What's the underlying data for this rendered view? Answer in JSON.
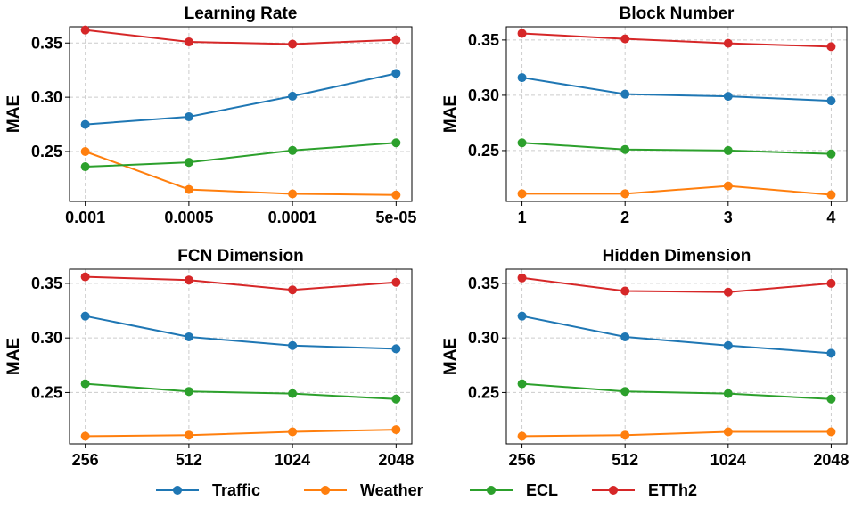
{
  "colors": {
    "Traffic": "#1f77b4",
    "Weather": "#ff7f0e",
    "ECL": "#2ca02c",
    "ETTh2": "#d62728"
  },
  "legend": [
    {
      "name": "Traffic"
    },
    {
      "name": "Weather"
    },
    {
      "name": "ECL"
    },
    {
      "name": "ETTh2"
    }
  ],
  "chart_data": [
    {
      "type": "line",
      "title": "Learning Rate",
      "ylabel": "MAE",
      "categories": [
        "0.001",
        "0.0005",
        "0.0001",
        "5e-05"
      ],
      "ylim": [
        0.204,
        0.365
      ],
      "yticks": [
        "0.25",
        "0.30",
        "0.35"
      ],
      "grid": true,
      "series": [
        {
          "name": "Traffic",
          "values": [
            0.275,
            0.282,
            0.301,
            0.322
          ]
        },
        {
          "name": "Weather",
          "values": [
            0.25,
            0.215,
            0.211,
            0.21
          ]
        },
        {
          "name": "ECL",
          "values": [
            0.236,
            0.24,
            0.251,
            0.258
          ]
        },
        {
          "name": "ETTh2",
          "values": [
            0.362,
            0.351,
            0.349,
            0.353
          ]
        }
      ]
    },
    {
      "type": "line",
      "title": "Block Number",
      "ylabel": "MAE",
      "categories": [
        "1",
        "2",
        "3",
        "4"
      ],
      "ylim": [
        0.204,
        0.362
      ],
      "yticks": [
        "0.25",
        "0.30",
        "0.35"
      ],
      "grid": true,
      "series": [
        {
          "name": "Traffic",
          "values": [
            0.316,
            0.301,
            0.299,
            0.295
          ]
        },
        {
          "name": "Weather",
          "values": [
            0.211,
            0.211,
            0.218,
            0.21
          ]
        },
        {
          "name": "ECL",
          "values": [
            0.257,
            0.251,
            0.25,
            0.247
          ]
        },
        {
          "name": "ETTh2",
          "values": [
            0.356,
            0.351,
            0.347,
            0.344
          ]
        }
      ]
    },
    {
      "type": "line",
      "title": "FCN Dimension",
      "ylabel": "MAE",
      "categories": [
        "256",
        "512",
        "1024",
        "2048"
      ],
      "ylim": [
        0.203,
        0.363
      ],
      "yticks": [
        "0.25",
        "0.30",
        "0.35"
      ],
      "grid": true,
      "series": [
        {
          "name": "Traffic",
          "values": [
            0.32,
            0.301,
            0.293,
            0.29
          ]
        },
        {
          "name": "Weather",
          "values": [
            0.21,
            0.211,
            0.214,
            0.216
          ]
        },
        {
          "name": "ECL",
          "values": [
            0.258,
            0.251,
            0.249,
            0.244
          ]
        },
        {
          "name": "ETTh2",
          "values": [
            0.356,
            0.353,
            0.344,
            0.351
          ]
        }
      ]
    },
    {
      "type": "line",
      "title": "Hidden Dimension",
      "ylabel": "MAE",
      "categories": [
        "256",
        "512",
        "1024",
        "2048"
      ],
      "ylim": [
        0.203,
        0.363
      ],
      "yticks": [
        "0.25",
        "0.30",
        "0.35"
      ],
      "grid": true,
      "series": [
        {
          "name": "Traffic",
          "values": [
            0.32,
            0.301,
            0.293,
            0.286
          ]
        },
        {
          "name": "Weather",
          "values": [
            0.21,
            0.211,
            0.214,
            0.214
          ]
        },
        {
          "name": "ECL",
          "values": [
            0.258,
            0.251,
            0.249,
            0.244
          ]
        },
        {
          "name": "ETTh2",
          "values": [
            0.355,
            0.343,
            0.342,
            0.35
          ]
        }
      ]
    }
  ]
}
